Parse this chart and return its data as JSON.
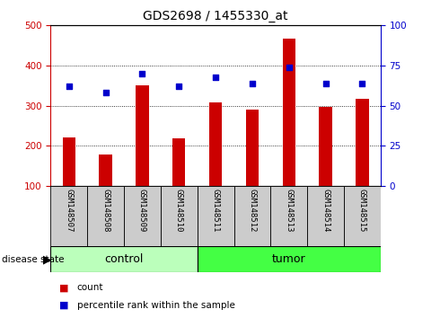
{
  "title": "GDS2698 / 1455330_at",
  "samples": [
    "GSM148507",
    "GSM148508",
    "GSM148509",
    "GSM148510",
    "GSM148511",
    "GSM148512",
    "GSM148513",
    "GSM148514",
    "GSM148515"
  ],
  "counts": [
    220,
    178,
    350,
    218,
    308,
    290,
    468,
    298,
    318
  ],
  "percentiles": [
    62,
    58,
    70,
    62,
    68,
    64,
    74,
    64,
    64
  ],
  "n_control": 4,
  "ylim_left": [
    100,
    500
  ],
  "ylim_right": [
    0,
    100
  ],
  "yticks_left": [
    100,
    200,
    300,
    400,
    500
  ],
  "yticks_right": [
    0,
    25,
    50,
    75,
    100
  ],
  "bar_color": "#cc0000",
  "dot_color": "#0000cc",
  "control_color": "#bbffbb",
  "tumor_color": "#44ff44",
  "tick_area_color": "#cccccc",
  "left_tick_color": "#cc0000",
  "right_tick_color": "#0000cc",
  "bar_width": 0.35,
  "dot_size": 25,
  "title_fontsize": 10,
  "tick_fontsize": 7.5,
  "label_fontsize": 8,
  "sample_fontsize": 6.5
}
